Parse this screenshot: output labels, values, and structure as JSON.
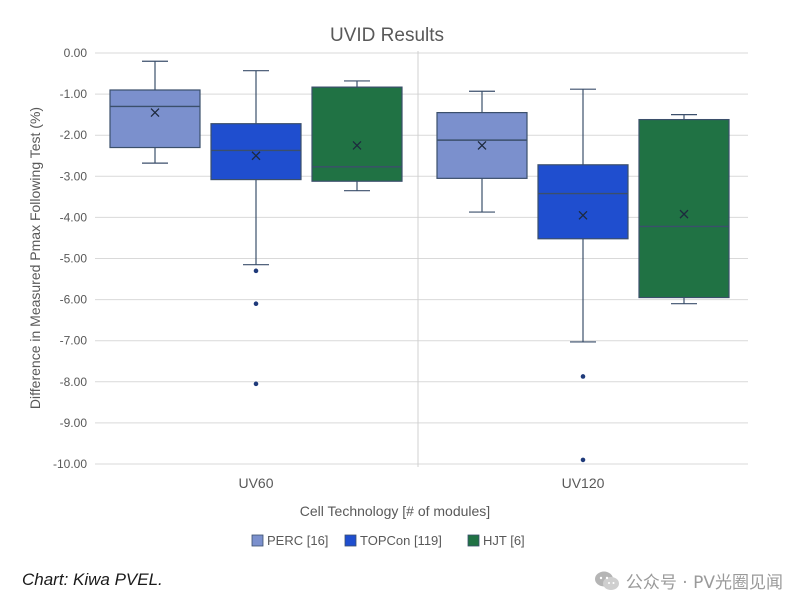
{
  "chart_data": {
    "type": "box",
    "title": "UVID Results",
    "xlabel": "Cell Technology [# of modules]",
    "ylabel": "Difference in Measured Pmax Following Test (%)",
    "ylim": [
      -10,
      0
    ],
    "yticks": [
      "0.00",
      "-1.00",
      "-2.00",
      "-3.00",
      "-4.00",
      "-5.00",
      "-6.00",
      "-7.00",
      "-8.00",
      "-9.00",
      "-10.00"
    ],
    "categories": [
      "UV60",
      "UV120"
    ],
    "grid": true,
    "legend_position": "bottom",
    "series": [
      {
        "name": "PERC [16]",
        "color": "#7b90cd",
        "boxes": [
          {
            "min": -2.68,
            "q1": -2.3,
            "median": -1.3,
            "q3": -0.9,
            "max": -0.2,
            "mean": -1.45,
            "outliers": []
          },
          {
            "min": -3.87,
            "q1": -3.05,
            "median": -2.12,
            "q3": -1.45,
            "max": -0.93,
            "mean": -2.25,
            "outliers": []
          }
        ]
      },
      {
        "name": "TOPCon [119]",
        "color": "#1f4ecf",
        "boxes": [
          {
            "min": -5.15,
            "q1": -3.08,
            "median": -2.37,
            "q3": -1.72,
            "max": -0.43,
            "mean": -2.5,
            "outliers": [
              -5.3,
              -6.1,
              -8.05
            ]
          },
          {
            "min": -7.03,
            "q1": -4.52,
            "median": -3.42,
            "q3": -2.72,
            "max": -0.88,
            "mean": -3.95,
            "outliers": [
              -7.87,
              -9.9
            ]
          }
        ]
      },
      {
        "name": "HJT [6]",
        "color": "#207244",
        "boxes": [
          {
            "min": -3.35,
            "q1": -3.12,
            "median": -2.77,
            "q3": -0.83,
            "max": -0.68,
            "mean": -2.25,
            "outliers": []
          },
          {
            "min": -6.1,
            "q1": -5.95,
            "median": -4.22,
            "q3": -1.62,
            "max": -1.5,
            "mean": -3.92,
            "outliers": []
          }
        ]
      }
    ]
  },
  "footer": {
    "credit": "Chart: Kiwa PVEL.",
    "watermark": "公众号 · PV光圈见闻"
  }
}
